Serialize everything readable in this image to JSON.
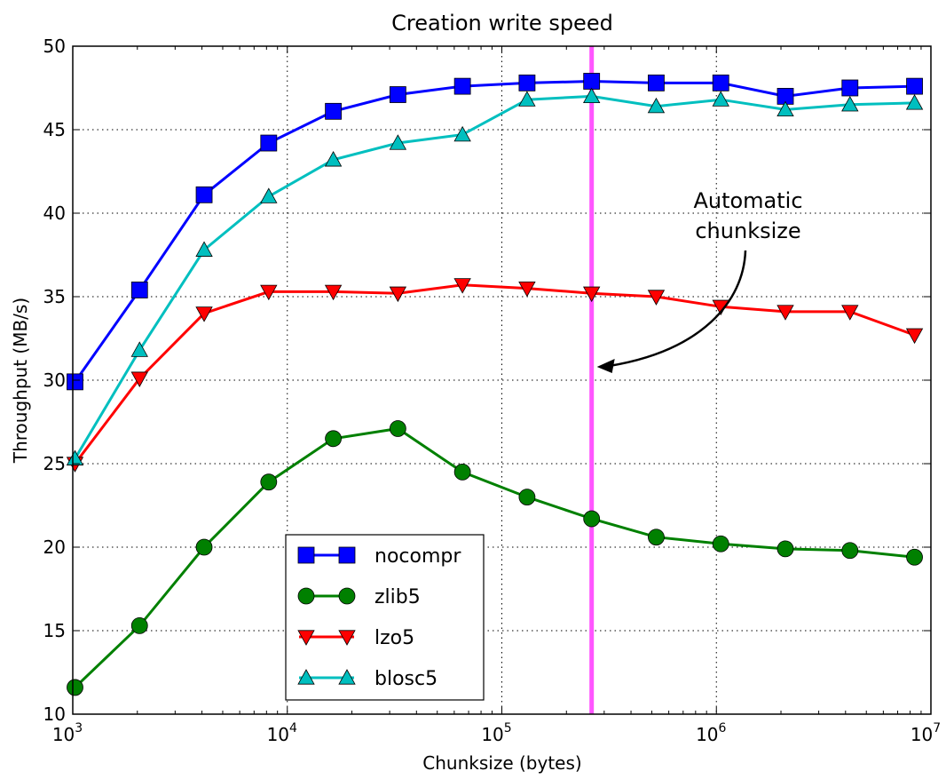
{
  "chart_data": {
    "type": "line",
    "title": "Creation write speed",
    "xlabel": "Chunksize (bytes)",
    "ylabel": "Throughput (MB/s)",
    "xscale": "log",
    "xlim": [
      1000,
      10000000
    ],
    "ylim": [
      10,
      50
    ],
    "grid": true,
    "legend_placement": "lower-center",
    "x_ticks": [
      {
        "value": 1000,
        "base": "10",
        "exp": "3"
      },
      {
        "value": 10000,
        "base": "10",
        "exp": "4"
      },
      {
        "value": 100000,
        "base": "10",
        "exp": "5"
      },
      {
        "value": 1000000,
        "base": "10",
        "exp": "6"
      },
      {
        "value": 10000000,
        "base": "10",
        "exp": "7"
      }
    ],
    "y_ticks": [
      10,
      15,
      20,
      25,
      30,
      35,
      40,
      45,
      50
    ],
    "x": [
      1024,
      2048,
      4096,
      8192,
      16384,
      32768,
      65536,
      131072,
      262144,
      524288,
      1048576,
      2097152,
      4194304,
      8388608
    ],
    "series": [
      {
        "name": "nocompr",
        "color": "#0000ff",
        "marker": "square",
        "values": [
          29.9,
          35.4,
          41.1,
          44.2,
          46.1,
          47.1,
          47.6,
          47.8,
          47.9,
          47.8,
          47.8,
          47.0,
          47.5,
          47.6
        ]
      },
      {
        "name": "zlib5",
        "color": "#008000",
        "marker": "circle",
        "values": [
          11.6,
          15.3,
          20.0,
          23.9,
          26.5,
          27.1,
          24.5,
          23.0,
          21.7,
          20.6,
          20.2,
          19.9,
          19.8,
          19.4
        ]
      },
      {
        "name": "lzo5",
        "color": "#ff0000",
        "marker": "triangle-down",
        "values": [
          25.0,
          30.1,
          34.0,
          35.3,
          35.3,
          35.2,
          35.7,
          35.5,
          35.2,
          35.0,
          34.4,
          34.1,
          34.1,
          32.7
        ]
      },
      {
        "name": "blosc5",
        "color": "#00bfbf",
        "marker": "triangle-up",
        "values": [
          25.3,
          31.8,
          37.8,
          41.0,
          43.2,
          44.2,
          44.7,
          46.8,
          47.0,
          46.4,
          46.8,
          46.2,
          46.5,
          46.6
        ]
      }
    ],
    "vline": {
      "x": 262144,
      "color": "#ff55ff"
    },
    "annotation": {
      "lines": [
        "Automatic",
        "chunksize"
      ],
      "text_at": {
        "x": 1400000,
        "y": 41.5
      },
      "arrow_to": {
        "x": 262144,
        "y": 30.8
      }
    }
  }
}
